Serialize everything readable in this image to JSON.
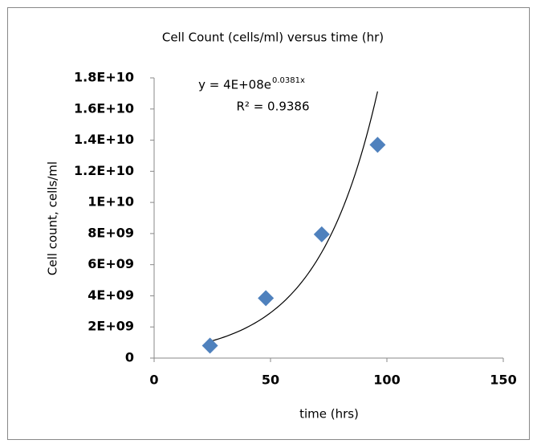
{
  "chart_data": {
    "type": "scatter",
    "title": "Cell Count  (cells/ml) versus time (hr)",
    "x_label": "time (hrs)",
    "y_label": "Cell count, cells/ml",
    "series": [
      {
        "name": "Cell count",
        "color": "#4f81bd",
        "x": [
          24,
          48,
          72,
          96
        ],
        "values": [
          800000000,
          3850000000,
          7950000000,
          13700000000
        ]
      }
    ],
    "trendline": {
      "type": "exponential",
      "equation": "y = 4E+08e",
      "equation_exponent": "0.0381x",
      "r_squared": "R² = 0.9386"
    },
    "xlim": [
      0,
      150
    ],
    "xticks": [
      0,
      50,
      100,
      150
    ],
    "ylim": [
      0,
      18000000000
    ],
    "yticks": [
      0,
      {
        "value": 2000000000,
        "label": "2E+09"
      },
      {
        "value": 4000000000,
        "label": "4E+09"
      },
      {
        "value": 6000000000,
        "label": "6E+09"
      },
      {
        "value": 8000000000,
        "label": "8E+09"
      },
      {
        "value": 10000000000,
        "label": "1E+10"
      },
      {
        "value": 12000000000,
        "label": "1.2E+10"
      },
      {
        "value": 14000000000,
        "label": "1.4E+10"
      },
      {
        "value": 16000000000,
        "label": "1.6E+10"
      },
      {
        "value": 18000000000,
        "label": "1.8E+10"
      }
    ],
    "grid": false
  }
}
